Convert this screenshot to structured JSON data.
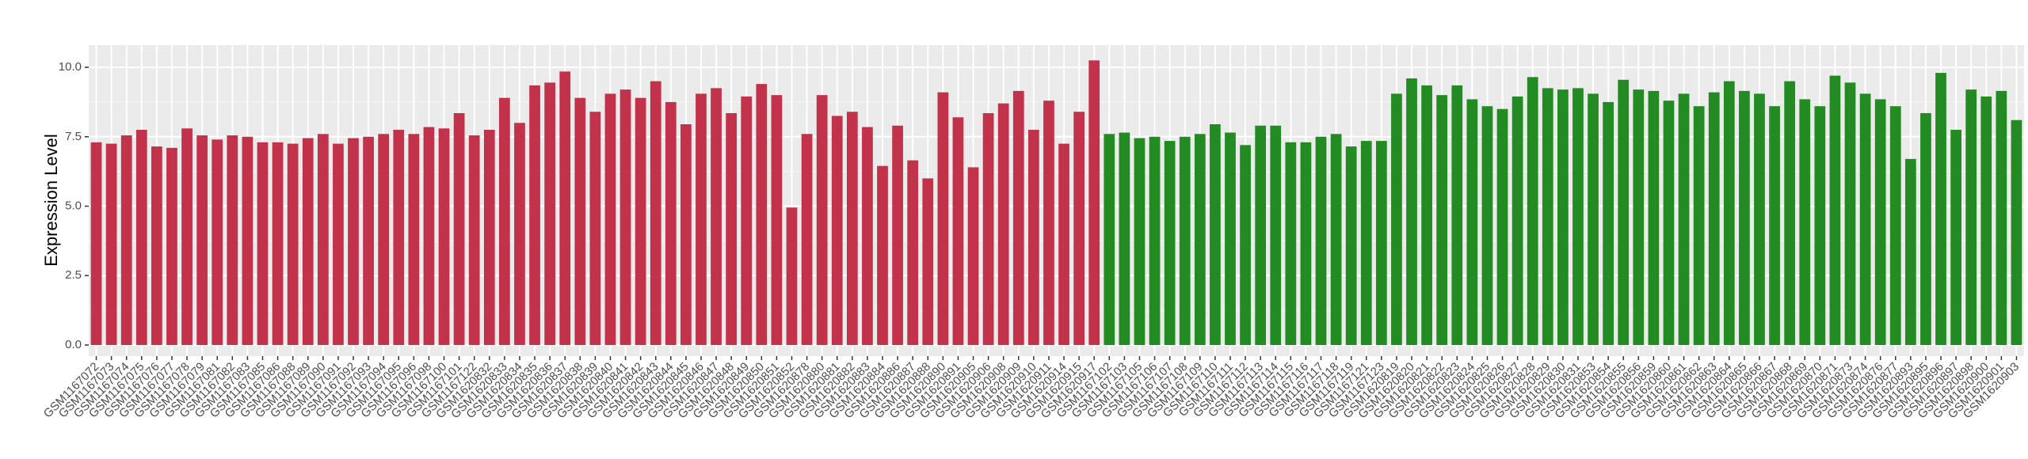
{
  "chart_data": {
    "type": "bar",
    "y_label": "Expression Level",
    "ylim": [
      -0.4,
      10.8
    ],
    "yticks": [
      {
        "value": 0,
        "label": "0.0"
      },
      {
        "value": 2.5,
        "label": "2.5"
      },
      {
        "value": 5,
        "label": "5.0"
      },
      {
        "value": 7.5,
        "label": "7.5"
      },
      {
        "value": 10,
        "label": "10.0"
      }
    ],
    "grid": true,
    "categories": [
      "GSM1167072",
      "GSM1167073",
      "GSM1167074",
      "GSM1167075",
      "GSM1167076",
      "GSM1167077",
      "GSM1167078",
      "GSM1167079",
      "GSM1167081",
      "GSM1167082",
      "GSM1167083",
      "GSM1167085",
      "GSM1167086",
      "GSM1167088",
      "GSM1167089",
      "GSM1167090",
      "GSM1167091",
      "GSM1167092",
      "GSM1167093",
      "GSM1167094",
      "GSM1167095",
      "GSM1167096",
      "GSM1167098",
      "GSM1167100",
      "GSM1167101",
      "GSM1167122",
      "GSM1620832",
      "GSM1620833",
      "GSM1620834",
      "GSM1620835",
      "GSM1620836",
      "GSM1620837",
      "GSM1620838",
      "GSM1620839",
      "GSM1620840",
      "GSM1620841",
      "GSM1620842",
      "GSM1620843",
      "GSM1620844",
      "GSM1620845",
      "GSM1620846",
      "GSM1620847",
      "GSM1620848",
      "GSM1620849",
      "GSM1620850",
      "GSM1620851",
      "GSM1620852",
      "GSM1620878",
      "GSM1620880",
      "GSM1620881",
      "GSM1620882",
      "GSM1620883",
      "GSM1620884",
      "GSM1620886",
      "GSM1620887",
      "GSM1620888",
      "GSM1620890",
      "GSM1620891",
      "GSM1620905",
      "GSM1620906",
      "GSM1620908",
      "GSM1620909",
      "GSM1620910",
      "GSM1620911",
      "GSM1620914",
      "GSM1620915",
      "GSM1620917",
      "GSM1167102",
      "GSM1167103",
      "GSM1167105",
      "GSM1167106",
      "GSM1167107",
      "GSM1167108",
      "GSM1167109",
      "GSM1167110",
      "GSM1167111",
      "GSM1167112",
      "GSM1167113",
      "GSM1167114",
      "GSM1167115",
      "GSM1167116",
      "GSM1167117",
      "GSM1167118",
      "GSM1167119",
      "GSM1167121",
      "GSM1167123",
      "GSM1620819",
      "GSM1620820",
      "GSM1620821",
      "GSM1620822",
      "GSM1620823",
      "GSM1620824",
      "GSM1620825",
      "GSM1620826",
      "GSM1620827",
      "GSM1620828",
      "GSM1620829",
      "GSM1620830",
      "GSM1620831",
      "GSM1620853",
      "GSM1620854",
      "GSM1620855",
      "GSM1620856",
      "GSM1620859",
      "GSM1620860",
      "GSM1620861",
      "GSM1620862",
      "GSM1620863",
      "GSM1620864",
      "GSM1620865",
      "GSM1620866",
      "GSM1620867",
      "GSM1620868",
      "GSM1620869",
      "GSM1620870",
      "GSM1620871",
      "GSM1620873",
      "GSM1620874",
      "GSM1620876",
      "GSM1620877",
      "GSM1620893",
      "GSM1620895",
      "GSM1620896",
      "GSM1620897",
      "GSM1620898",
      "GSM1620900",
      "GSM1620901",
      "GSM1620903"
    ],
    "series": [
      {
        "color": "#c2334b",
        "values": [
          7.3,
          7.25,
          7.55,
          7.75,
          7.15,
          7.1,
          7.8,
          7.55,
          7.4,
          7.55,
          7.5,
          7.3,
          7.3,
          7.25,
          7.45,
          7.6,
          7.25,
          7.45,
          7.5,
          7.6,
          7.75,
          7.6,
          7.85,
          7.8,
          8.35,
          7.55,
          7.75,
          8.9,
          8.0,
          9.35,
          9.45,
          9.85,
          8.9,
          8.4,
          9.05,
          9.2,
          8.9,
          9.5,
          8.75,
          7.95,
          9.05,
          9.25,
          8.35,
          8.95,
          9.4,
          9.0,
          4.95,
          7.6,
          9.0,
          8.25,
          8.4,
          7.85,
          6.45,
          7.9,
          6.65,
          6.0,
          9.1,
          8.2,
          6.4,
          8.35,
          8.7,
          9.15,
          7.75,
          8.8,
          7.25,
          8.4,
          10.25,
          null,
          null,
          null,
          null,
          null,
          null,
          null,
          null,
          null,
          null,
          null,
          null,
          null,
          null,
          null,
          null,
          null,
          null,
          null,
          null,
          null,
          null,
          null,
          null,
          null,
          null,
          null,
          null,
          null,
          null,
          null,
          null,
          null,
          null,
          null,
          null,
          null,
          null,
          null,
          null,
          null,
          null,
          null,
          null,
          null,
          null,
          null,
          null,
          null,
          null,
          null,
          null,
          null,
          null,
          null,
          null,
          null,
          null,
          null,
          null,
          null
        ]
      },
      {
        "color": "#228b22",
        "values": [
          null,
          null,
          null,
          null,
          null,
          null,
          null,
          null,
          null,
          null,
          null,
          null,
          null,
          null,
          null,
          null,
          null,
          null,
          null,
          null,
          null,
          null,
          null,
          null,
          null,
          null,
          null,
          null,
          null,
          null,
          null,
          null,
          null,
          null,
          null,
          null,
          null,
          null,
          null,
          null,
          null,
          null,
          null,
          null,
          null,
          null,
          null,
          null,
          null,
          null,
          null,
          null,
          null,
          null,
          null,
          null,
          null,
          null,
          null,
          null,
          null,
          null,
          null,
          null,
          null,
          null,
          null,
          7.6,
          7.65,
          7.45,
          7.5,
          7.35,
          7.5,
          7.6,
          7.95,
          7.65,
          7.2,
          7.9,
          7.9,
          7.3,
          7.3,
          7.5,
          7.6,
          7.15,
          7.35,
          7.35,
          9.05,
          9.6,
          9.35,
          9.0,
          9.35,
          8.85,
          8.6,
          8.5,
          8.95,
          9.65,
          9.25,
          9.2,
          9.25,
          9.05,
          8.75,
          9.55,
          9.2,
          9.15,
          8.8,
          9.05,
          8.6,
          9.1,
          9.5,
          9.15,
          9.05,
          8.6,
          9.5,
          8.85,
          8.6,
          9.7,
          9.45,
          9.05,
          8.85,
          8.6,
          6.7,
          8.35,
          9.8,
          7.75,
          9.2,
          8.95,
          9.15,
          8.1
        ]
      }
    ]
  }
}
